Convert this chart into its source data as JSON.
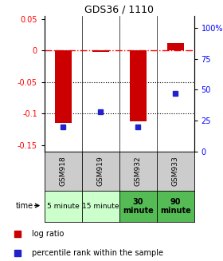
{
  "title": "GDS36 / 1110",
  "samples": [
    "GSM918",
    "GSM919",
    "GSM932",
    "GSM933"
  ],
  "time_labels": [
    "5 minute",
    "15 minute",
    "30\nminute",
    "90\nminute"
  ],
  "time_colors_light": [
    "#ccffcc",
    "#ccffcc"
  ],
  "time_colors_dark": [
    "#55bb55",
    "#55bb55"
  ],
  "log_ratios": [
    -0.115,
    -0.002,
    -0.113,
    0.012
  ],
  "percentile_ranks": [
    20,
    32,
    20,
    47
  ],
  "ylim_left": [
    -0.16,
    0.055
  ],
  "ylim_right": [
    0,
    110
  ],
  "yticks_left": [
    0.05,
    0.0,
    -0.05,
    -0.1,
    -0.15
  ],
  "ytick_labels_left": [
    "0.05",
    "0",
    "-0.05",
    "-0.1",
    "-0.15"
  ],
  "yticks_right_vals": [
    100,
    75,
    50,
    25,
    0
  ],
  "yticks_right_mapped": [
    100,
    75,
    50,
    25,
    0
  ],
  "ytick_labels_right": [
    "100%",
    "75",
    "50",
    "25",
    "0"
  ],
  "bar_color": "#cc0000",
  "dot_color": "#2222cc",
  "bar_width": 0.45,
  "figsize": [
    2.8,
    3.27
  ],
  "dpi": 100
}
